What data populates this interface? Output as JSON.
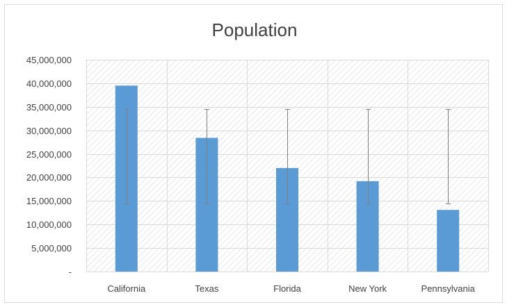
{
  "chart_data": {
    "type": "bar",
    "title": "Population",
    "xlabel": "",
    "ylabel": "",
    "categories": [
      "California",
      "Texas",
      "Florida",
      "New York",
      "Pennsylvania"
    ],
    "series": [
      {
        "values": [
          39500000,
          28400000,
          22000000,
          19200000,
          13100000
        ],
        "error_bars": {
          "low": [
            14500000,
            14500000,
            14500000,
            14500000,
            14500000
          ],
          "high": [
            34500000,
            34500000,
            34500000,
            34500000,
            34500000
          ]
        }
      }
    ],
    "ylim": [
      0,
      45000000
    ],
    "yticks": [
      0,
      5000000,
      10000000,
      15000000,
      20000000,
      25000000,
      30000000,
      35000000,
      40000000,
      45000000
    ],
    "ytick_labels": [
      "-",
      "5,000,000",
      "10,000,000",
      "15,000,000",
      "20,000,000",
      "25,000,000",
      "30,000,000",
      "35,000,000",
      "40,000,000",
      "45,000,000"
    ],
    "grid": true,
    "plot_area_pattern": "diagonal-hatch",
    "legend": "none",
    "colors": {
      "bar": "#5b9bd5",
      "grid": "#d9d9d9",
      "hatch": "#d9d9d9",
      "error_bar": "#7f7f7f",
      "text": "#404040"
    }
  }
}
